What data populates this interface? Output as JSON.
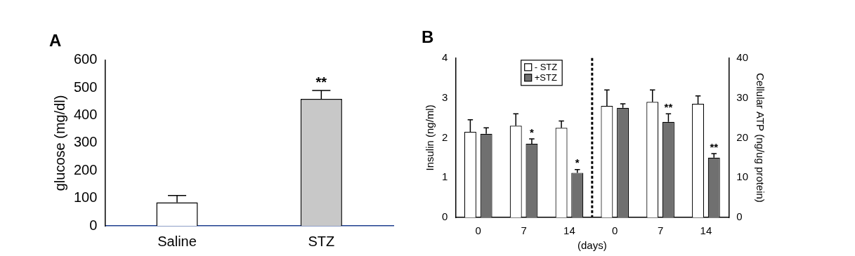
{
  "chart_data": [
    {
      "type": "bar",
      "title": "A",
      "categories": [
        "Saline",
        "STZ"
      ],
      "values": [
        85,
        460
      ],
      "errors": [
        25,
        30
      ],
      "significance": [
        null,
        "**"
      ],
      "colors": [
        "#ffffff",
        "#c8c8c8"
      ],
      "y_label": "glucose (mg/dl)",
      "ylim": [
        0,
        600
      ],
      "yticks": [
        0,
        100,
        200,
        300,
        400,
        500,
        600
      ],
      "grid": false
    },
    {
      "type": "bar",
      "title": "B",
      "categories": [
        "0",
        "7",
        "14",
        "0",
        "7",
        "14"
      ],
      "x_label": "(days)",
      "y_label": "Insulin (ng/ml)",
      "y2_label": "Cellular ATP (ng/ug protein)",
      "ylim": [
        0,
        4
      ],
      "yticks": [
        0,
        1,
        2,
        3,
        4
      ],
      "y2lim": [
        0,
        40
      ],
      "y2ticks": [
        0,
        10,
        20,
        30,
        40
      ],
      "grid": false,
      "legend": "top",
      "series": [
        {
          "name": "- STZ",
          "color": "#ffffff",
          "axis": "y",
          "values": [
            2.15,
            2.3,
            2.25,
            null,
            null,
            null
          ],
          "errors": [
            0.3,
            0.3,
            0.17,
            null,
            null,
            null
          ],
          "significance": [
            null,
            null,
            null,
            null,
            null,
            null
          ]
        },
        {
          "name": "+STZ",
          "color": "#707070",
          "axis": "y",
          "values": [
            2.1,
            1.85,
            1.12,
            null,
            null,
            null
          ],
          "errors": [
            0.15,
            0.12,
            0.08,
            null,
            null,
            null
          ],
          "significance": [
            null,
            "*",
            "*",
            null,
            null,
            null
          ]
        },
        {
          "name": "- STZ",
          "color": "#ffffff",
          "axis": "y2",
          "values": [
            null,
            null,
            null,
            28,
            29,
            28.5
          ],
          "errors": [
            null,
            null,
            null,
            4,
            3,
            2
          ],
          "significance": [
            null,
            null,
            null,
            null,
            null,
            null
          ]
        },
        {
          "name": "+STZ",
          "color": "#707070",
          "axis": "y2",
          "values": [
            null,
            null,
            null,
            27.5,
            24,
            15
          ],
          "errors": [
            null,
            null,
            null,
            1,
            2,
            1
          ],
          "significance": [
            null,
            null,
            null,
            null,
            "**",
            "**"
          ]
        }
      ]
    }
  ]
}
